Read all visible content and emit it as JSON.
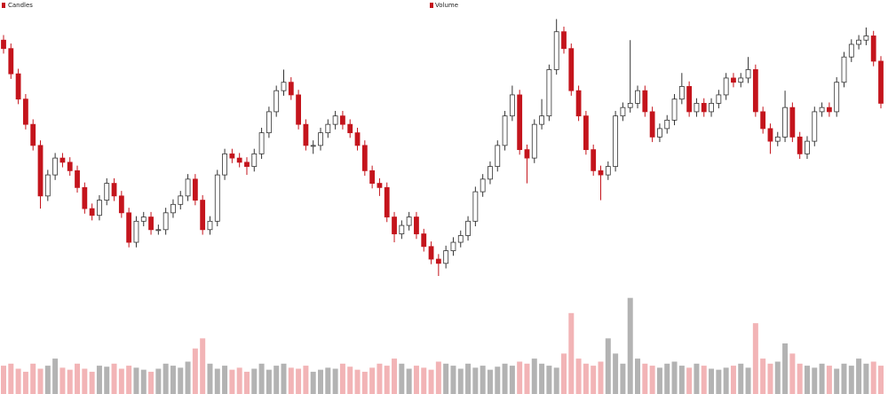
{
  "chart_data": {
    "type": "candlestick",
    "ylim": [
      60,
      395
    ],
    "up_color": "#ffffff",
    "up_stroke": "#333333",
    "down_color": "#c4141c",
    "candles": {
      "name": "Candles",
      "open": [
        360,
        350,
        320,
        290,
        260,
        235,
        175,
        200,
        220,
        215,
        205,
        185,
        160,
        152,
        170,
        190,
        175,
        155,
        120,
        145,
        150,
        135,
        135,
        155,
        165,
        175,
        195,
        170,
        135,
        145,
        200,
        225,
        220,
        215,
        210,
        225,
        250,
        275,
        300,
        310,
        295,
        260,
        235,
        235,
        250,
        260,
        270,
        260,
        250,
        235,
        205,
        190,
        185,
        150,
        130,
        140,
        150,
        130,
        115,
        100,
        95,
        110,
        120,
        128,
        145,
        180,
        195,
        210,
        235,
        270,
        295,
        230,
        220,
        260,
        270,
        325,
        370,
        350,
        300,
        270,
        230,
        205,
        200,
        210,
        270,
        280,
        285,
        300,
        275,
        245,
        255,
        265,
        290,
        305,
        275,
        285,
        275,
        285,
        295,
        315,
        310,
        315,
        325,
        275,
        255,
        240,
        245,
        280,
        245,
        225,
        240,
        275,
        280,
        275,
        310,
        340,
        355,
        360,
        365,
        335
      ],
      "high": [
        366,
        356,
        326,
        296,
        266,
        241,
        206,
        226,
        226,
        221,
        211,
        191,
        166,
        176,
        196,
        196,
        181,
        161,
        151,
        156,
        156,
        141,
        161,
        171,
        181,
        201,
        201,
        176,
        151,
        206,
        231,
        231,
        226,
        221,
        231,
        256,
        281,
        306,
        325,
        316,
        301,
        266,
        241,
        256,
        266,
        276,
        276,
        266,
        256,
        241,
        211,
        196,
        191,
        156,
        146,
        156,
        156,
        136,
        121,
        106,
        116,
        126,
        134,
        151,
        186,
        201,
        216,
        241,
        276,
        306,
        301,
        236,
        266,
        290,
        331,
        385,
        376,
        356,
        306,
        276,
        236,
        211,
        216,
        276,
        286,
        360,
        306,
        306,
        281,
        261,
        271,
        296,
        321,
        311,
        291,
        291,
        291,
        301,
        321,
        321,
        321,
        340,
        331,
        281,
        261,
        251,
        300,
        286,
        251,
        246,
        281,
        286,
        286,
        316,
        346,
        361,
        366,
        375,
        371,
        341
      ],
      "low": [
        344,
        314,
        284,
        254,
        229,
        160,
        169,
        194,
        209,
        199,
        179,
        154,
        146,
        146,
        164,
        169,
        149,
        114,
        114,
        139,
        129,
        129,
        129,
        149,
        159,
        169,
        164,
        129,
        129,
        139,
        194,
        214,
        209,
        200,
        204,
        219,
        244,
        269,
        294,
        289,
        254,
        229,
        225,
        229,
        244,
        254,
        254,
        244,
        229,
        199,
        184,
        175,
        144,
        120,
        124,
        134,
        124,
        109,
        94,
        80,
        89,
        104,
        114,
        122,
        139,
        174,
        189,
        204,
        229,
        264,
        224,
        190,
        214,
        254,
        264,
        319,
        344,
        294,
        264,
        224,
        199,
        170,
        194,
        204,
        264,
        274,
        279,
        269,
        239,
        239,
        249,
        259,
        284,
        269,
        269,
        269,
        269,
        279,
        289,
        304,
        304,
        309,
        269,
        249,
        225,
        234,
        239,
        239,
        219,
        219,
        234,
        269,
        269,
        269,
        304,
        334,
        349,
        354,
        329,
        279
      ],
      "close": [
        350,
        320,
        290,
        260,
        235,
        175,
        200,
        220,
        215,
        205,
        185,
        160,
        152,
        170,
        190,
        175,
        155,
        120,
        145,
        150,
        135,
        135,
        155,
        165,
        175,
        195,
        170,
        135,
        145,
        200,
        225,
        220,
        215,
        210,
        225,
        250,
        275,
        300,
        310,
        295,
        260,
        235,
        235,
        250,
        260,
        270,
        260,
        250,
        235,
        205,
        190,
        185,
        150,
        130,
        140,
        150,
        130,
        115,
        100,
        95,
        110,
        120,
        128,
        145,
        180,
        195,
        210,
        235,
        270,
        295,
        230,
        220,
        260,
        270,
        325,
        370,
        350,
        300,
        270,
        230,
        205,
        200,
        210,
        270,
        280,
        285,
        300,
        275,
        245,
        255,
        265,
        290,
        305,
        275,
        285,
        275,
        285,
        295,
        315,
        310,
        315,
        325,
        275,
        255,
        240,
        245,
        280,
        245,
        225,
        240,
        275,
        280,
        275,
        310,
        340,
        355,
        360,
        365,
        335,
        285
      ]
    },
    "volume": {
      "name": "Volume",
      "ylim": [
        0,
        100
      ],
      "up_color": "#b3b3b3",
      "down_color": "#f2b4b6",
      "values": [
        28,
        30,
        25,
        22,
        30,
        25,
        28,
        35,
        26,
        24,
        30,
        25,
        22,
        28,
        27,
        30,
        25,
        28,
        26,
        24,
        22,
        25,
        30,
        28,
        26,
        32,
        45,
        55,
        30,
        25,
        28,
        24,
        26,
        22,
        25,
        30,
        24,
        28,
        30,
        26,
        25,
        28,
        22,
        24,
        26,
        25,
        30,
        27,
        24,
        22,
        26,
        30,
        28,
        35,
        30,
        25,
        28,
        26,
        24,
        32,
        30,
        28,
        25,
        30,
        26,
        28,
        24,
        27,
        30,
        28,
        32,
        30,
        35,
        30,
        28,
        26,
        40,
        80,
        35,
        30,
        28,
        32,
        55,
        40,
        30,
        95,
        35,
        30,
        28,
        26,
        30,
        32,
        28,
        26,
        30,
        28,
        25,
        24,
        26,
        28,
        30,
        26,
        70,
        35,
        30,
        32,
        50,
        40,
        30,
        28,
        26,
        30,
        28,
        25,
        30,
        28,
        35,
        30,
        32,
        28
      ]
    }
  }
}
